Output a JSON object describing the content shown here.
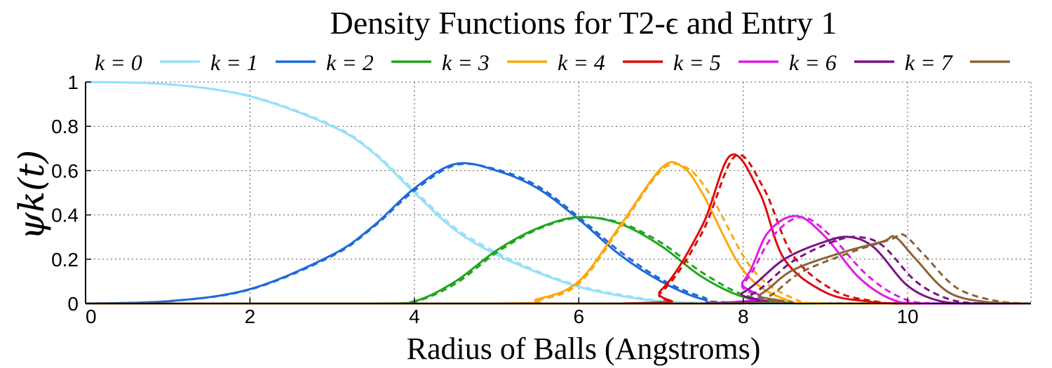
{
  "chart_data": {
    "type": "line",
    "title": "Density Functions for T2-ϵ and Entry 1",
    "xlabel": "Radius of Balls (Angstroms)",
    "ylabel": "ψk(t)",
    "xlim": [
      0,
      11.5
    ],
    "ylim": [
      0,
      1
    ],
    "xticks": [
      0,
      2,
      4,
      6,
      8,
      10
    ],
    "yticks": [
      0,
      0.2,
      0.4,
      0.6,
      0.8,
      1
    ],
    "ytick_labels": [
      "0",
      "0.2",
      "0.4",
      "0.6",
      "0.8",
      "1"
    ],
    "grid": true,
    "legend_position": "top",
    "line_styles": {
      "solid": "T2-ϵ",
      "dashed": "Entry 1"
    },
    "series": [
      {
        "name": "k = 0",
        "color": "#96e0f9",
        "solid": [
          [
            0,
            1.0
          ],
          [
            1,
            0.99
          ],
          [
            2,
            0.935
          ],
          [
            3,
            0.8
          ],
          [
            3.5,
            0.68
          ],
          [
            4,
            0.5
          ],
          [
            4.5,
            0.33
          ],
          [
            5,
            0.22
          ],
          [
            5.5,
            0.14
          ],
          [
            6,
            0.075
          ],
          [
            6.5,
            0.035
          ],
          [
            7,
            0.01
          ],
          [
            7.5,
            0.002
          ],
          [
            8,
            0
          ]
        ],
        "dashed": [
          [
            0,
            1.0
          ],
          [
            1,
            0.99
          ],
          [
            2,
            0.937
          ],
          [
            3,
            0.805
          ],
          [
            3.5,
            0.685
          ],
          [
            4,
            0.51
          ],
          [
            4.5,
            0.34
          ],
          [
            5,
            0.23
          ],
          [
            5.5,
            0.145
          ],
          [
            6,
            0.08
          ],
          [
            6.5,
            0.04
          ],
          [
            7,
            0.012
          ],
          [
            7.5,
            0.003
          ],
          [
            8,
            0
          ]
        ]
      },
      {
        "name": "k = 1",
        "color": "#1f6ad8",
        "solid": [
          [
            0,
            0
          ],
          [
            1,
            0.01
          ],
          [
            2,
            0.065
          ],
          [
            3,
            0.22
          ],
          [
            3.5,
            0.35
          ],
          [
            4,
            0.52
          ],
          [
            4.5,
            0.63
          ],
          [
            5,
            0.6
          ],
          [
            5.5,
            0.52
          ],
          [
            6,
            0.38
          ],
          [
            6.5,
            0.22
          ],
          [
            7,
            0.1
          ],
          [
            7.5,
            0.02
          ],
          [
            8,
            0.002
          ]
        ],
        "dashed": [
          [
            0,
            0
          ],
          [
            1,
            0.01
          ],
          [
            2,
            0.063
          ],
          [
            3,
            0.215
          ],
          [
            3.5,
            0.345
          ],
          [
            4,
            0.51
          ],
          [
            4.5,
            0.625
          ],
          [
            5,
            0.605
          ],
          [
            5.5,
            0.53
          ],
          [
            6,
            0.39
          ],
          [
            6.5,
            0.235
          ],
          [
            7,
            0.11
          ],
          [
            7.5,
            0.03
          ],
          [
            8,
            0.004
          ]
        ]
      },
      {
        "name": "k = 2",
        "color": "#23a51f",
        "solid": [
          [
            3.5,
            0
          ],
          [
            4,
            0.01
          ],
          [
            4.5,
            0.1
          ],
          [
            5,
            0.24
          ],
          [
            5.5,
            0.34
          ],
          [
            6,
            0.39
          ],
          [
            6.5,
            0.36
          ],
          [
            7,
            0.26
          ],
          [
            7.5,
            0.12
          ],
          [
            8,
            0.03
          ],
          [
            8.5,
            0.005
          ],
          [
            9,
            0
          ]
        ],
        "dashed": [
          [
            3.5,
            0
          ],
          [
            4,
            0.008
          ],
          [
            4.5,
            0.09
          ],
          [
            5,
            0.23
          ],
          [
            5.5,
            0.335
          ],
          [
            6,
            0.388
          ],
          [
            6.5,
            0.365
          ],
          [
            7,
            0.275
          ],
          [
            7.5,
            0.14
          ],
          [
            8,
            0.04
          ],
          [
            8.5,
            0.008
          ],
          [
            9,
            0
          ]
        ]
      },
      {
        "name": "k = 3",
        "color": "#fca80a",
        "solid": [
          [
            5,
            0
          ],
          [
            5.5,
            0.02
          ],
          [
            6,
            0.1
          ],
          [
            6.5,
            0.35
          ],
          [
            7,
            0.61
          ],
          [
            7.25,
            0.62
          ],
          [
            7.5,
            0.5
          ],
          [
            8,
            0.15
          ],
          [
            8.5,
            0.02
          ],
          [
            9,
            0
          ]
        ],
        "dashed": [
          [
            5,
            0
          ],
          [
            5.5,
            0.015
          ],
          [
            6,
            0.09
          ],
          [
            6.5,
            0.34
          ],
          [
            7,
            0.6
          ],
          [
            7.3,
            0.615
          ],
          [
            7.6,
            0.49
          ],
          [
            8.1,
            0.16
          ],
          [
            8.6,
            0.025
          ],
          [
            9.1,
            0
          ]
        ]
      },
      {
        "name": "k = 4",
        "color": "#e00b0b",
        "solid": [
          [
            6.5,
            0
          ],
          [
            7,
            0.06
          ],
          [
            7.5,
            0.35
          ],
          [
            7.85,
            0.67
          ],
          [
            8.2,
            0.5
          ],
          [
            8.5,
            0.2
          ],
          [
            9,
            0.05
          ],
          [
            9.5,
            0.01
          ],
          [
            10,
            0
          ]
        ],
        "dashed": [
          [
            6.5,
            0
          ],
          [
            7,
            0.05
          ],
          [
            7.5,
            0.32
          ],
          [
            7.9,
            0.665
          ],
          [
            8.25,
            0.52
          ],
          [
            8.6,
            0.22
          ],
          [
            9.1,
            0.06
          ],
          [
            9.6,
            0.01
          ],
          [
            10,
            0
          ]
        ]
      },
      {
        "name": "k = 5",
        "color": "#df1ce4",
        "solid": [
          [
            7.5,
            0
          ],
          [
            8,
            0.1
          ],
          [
            8.3,
            0.32
          ],
          [
            8.65,
            0.395
          ],
          [
            9,
            0.3
          ],
          [
            9.4,
            0.12
          ],
          [
            9.8,
            0.02
          ],
          [
            10.2,
            0
          ]
        ],
        "dashed": [
          [
            7.5,
            0
          ],
          [
            8,
            0.09
          ],
          [
            8.35,
            0.3
          ],
          [
            8.7,
            0.39
          ],
          [
            9.05,
            0.31
          ],
          [
            9.5,
            0.13
          ],
          [
            9.9,
            0.03
          ],
          [
            10.3,
            0
          ]
        ]
      },
      {
        "name": "k = 6",
        "color": "#7b1286",
        "solid": [
          [
            7.5,
            0
          ],
          [
            8,
            0.05
          ],
          [
            8.5,
            0.2
          ],
          [
            9,
            0.28
          ],
          [
            9.3,
            0.3
          ],
          [
            9.6,
            0.25
          ],
          [
            10,
            0.08
          ],
          [
            10.4,
            0.01
          ],
          [
            10.8,
            0
          ]
        ],
        "dashed": [
          [
            7.6,
            0
          ],
          [
            8.1,
            0.04
          ],
          [
            8.6,
            0.19
          ],
          [
            9.1,
            0.28
          ],
          [
            9.4,
            0.3
          ],
          [
            9.7,
            0.26
          ],
          [
            10.1,
            0.1
          ],
          [
            10.5,
            0.02
          ],
          [
            10.9,
            0
          ]
        ]
      },
      {
        "name": "k = 7",
        "color": "#8b6239",
        "solid": [
          [
            7.8,
            0
          ],
          [
            8.2,
            0.04
          ],
          [
            8.6,
            0.15
          ],
          [
            9.2,
            0.23
          ],
          [
            9.7,
            0.28
          ],
          [
            9.85,
            0.3
          ],
          [
            10.1,
            0.2
          ],
          [
            10.5,
            0.05
          ],
          [
            11,
            0.005
          ],
          [
            11.5,
            0
          ]
        ],
        "dashed": [
          [
            7.9,
            0
          ],
          [
            8.3,
            0.03
          ],
          [
            8.7,
            0.14
          ],
          [
            9.3,
            0.23
          ],
          [
            9.8,
            0.29
          ],
          [
            9.95,
            0.31
          ],
          [
            10.2,
            0.22
          ],
          [
            10.6,
            0.07
          ],
          [
            11.1,
            0.01
          ],
          [
            11.5,
            0
          ]
        ]
      }
    ]
  }
}
